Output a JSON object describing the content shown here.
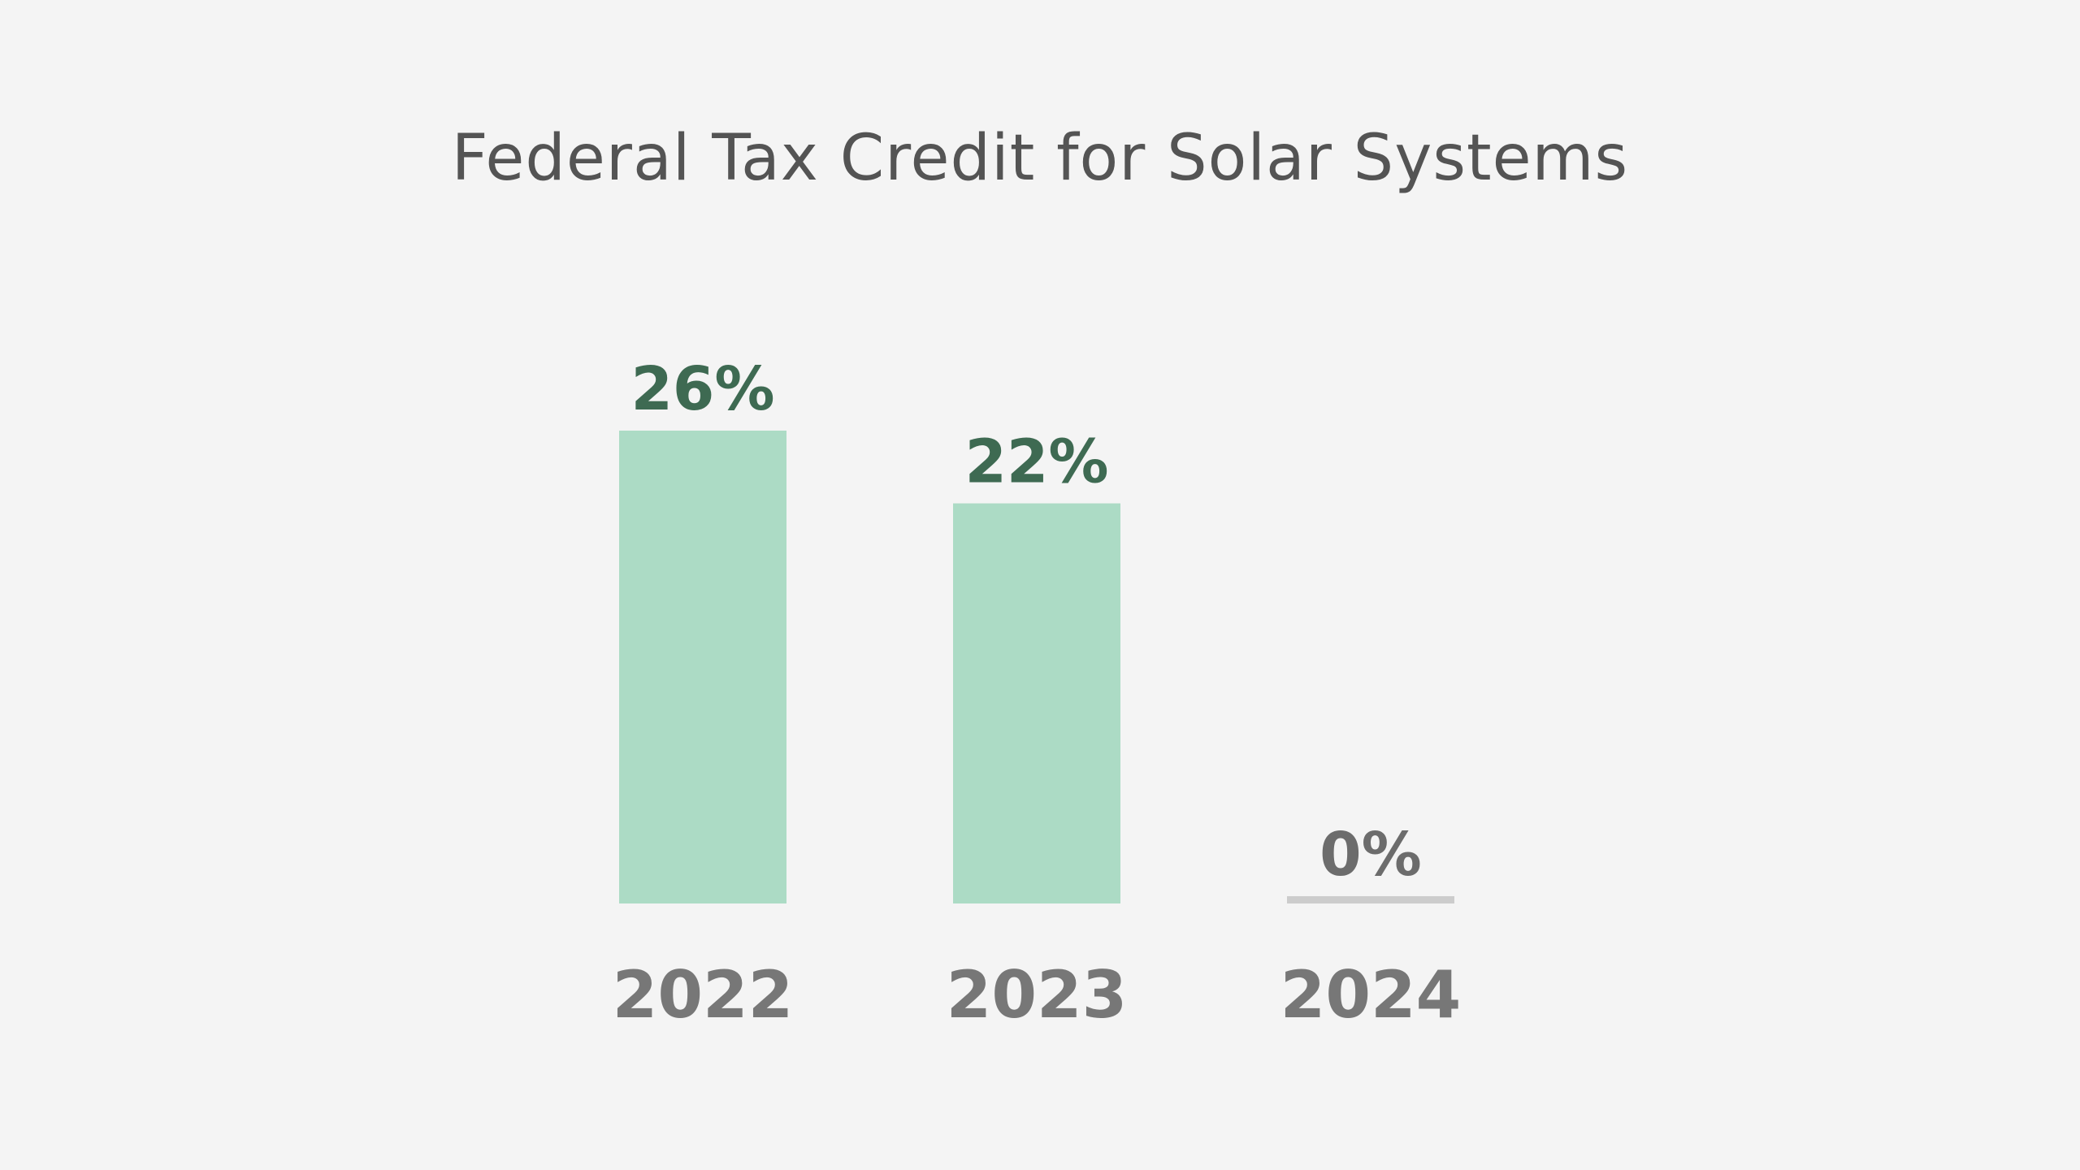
{
  "chart_data": {
    "type": "bar",
    "title": "Federal Tax Credit for Solar Systems",
    "xlabel": "",
    "ylabel": "",
    "categories": [
      "2022",
      "2023",
      "2024"
    ],
    "values": [
      26,
      22,
      0
    ],
    "data_labels": [
      "26%",
      "22%",
      "0%"
    ],
    "unit": "%",
    "ylim": [
      0,
      26
    ],
    "grid": false,
    "legend": "none"
  },
  "colors": {
    "background": "#f4f4f4",
    "bar_fill": "#acdbc5",
    "zero_bar": "#cccccc",
    "label_highlight": "#3e6a52",
    "label_muted": "#6c6c6c",
    "tick_text": "#777777",
    "title_text": "#545454"
  }
}
